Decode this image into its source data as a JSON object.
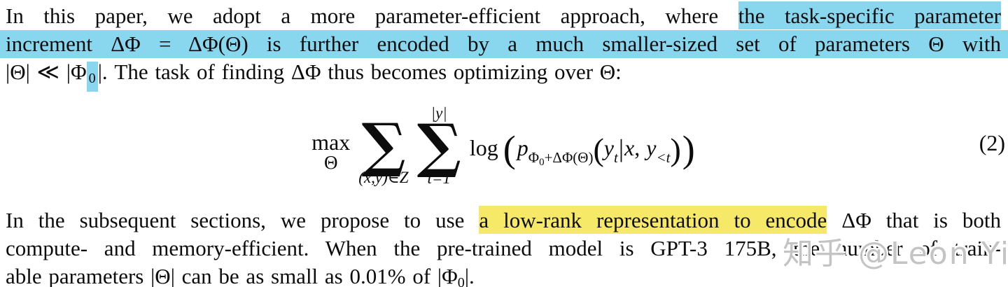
{
  "colors": {
    "background": "#ffffff",
    "text": "#0c0c0c",
    "highlight_blue": "#89d7ef",
    "highlight_yellow": "#f6e968",
    "watermark_gray": "#bababa"
  },
  "paragraph1": {
    "line1": {
      "normal": "In this paper, we adopt a more parameter-efficient approach, where ",
      "highlighted": "the task-specific parameter"
    },
    "line2": {
      "highlighted": "increment ΔΦ = ΔΦ(Θ) is further encoded by a much smaller-sized set of parameters Θ with"
    },
    "line3": {
      "pre": "|Θ| ≪ |Φ",
      "subscript_highlighted": "0",
      "post": "|. The task of finding ΔΦ thus becomes optimizing over Θ:"
    }
  },
  "equation": {
    "number": "(2)",
    "operator": "max",
    "operator_sub": "Θ",
    "sum_glyph": "∑",
    "sum1_under": "(x,y)∈Z",
    "sum2_over": "|y|",
    "sum2_under": "t=1",
    "log": "log",
    "open_outer": "(",
    "p": "p",
    "p_sub_phi": "Φ",
    "p_sub_zero": "0",
    "p_sub_rest": "+ΔΦ(Θ)",
    "open_inner": "(",
    "y1": "y",
    "y1_sub": "t",
    "bar": "|",
    "x": "x",
    "comma": ",",
    "y2": "y",
    "y2_sub": "<t",
    "close_inner": ")",
    "close_outer": ")"
  },
  "paragraph2": {
    "line1": {
      "pre": "In the subsequent sections, we propose to use ",
      "highlighted": "a low-rank representation to encode",
      "post": " ΔΦ that is both"
    },
    "line2": {
      "text": "compute- and memory-efficient. When the pre-trained model is GPT-3 175B, the number of train-"
    },
    "line3": {
      "pre": "able parameters |Θ| can be as small as 0.01% of |Φ",
      "subscript": "0",
      "post": "|."
    }
  },
  "watermark": {
    "text": "知乎 @Leon Yi"
  }
}
